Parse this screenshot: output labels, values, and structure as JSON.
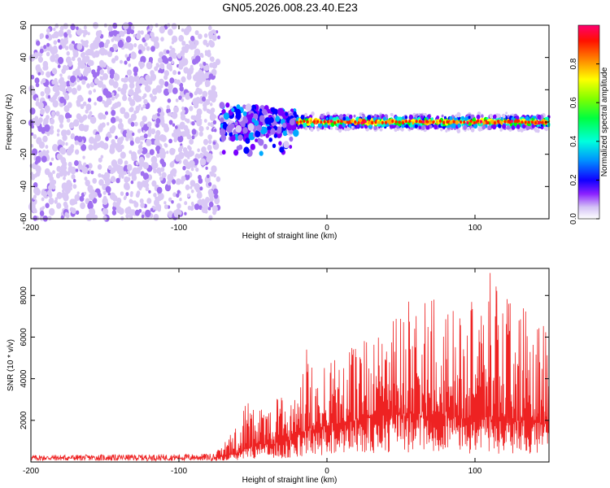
{
  "title": "GN05.2026.008.23.40.E23",
  "colors": {
    "snr_line": "#ee2222",
    "scatter_scale": [
      "#ffffff",
      "#d9c8f5",
      "#a070f0",
      "#7a00ff",
      "#0000ff",
      "#00aaff",
      "#00ffcc",
      "#00ff00",
      "#ffff00",
      "#ffaa00",
      "#ff2000",
      "#ff0066"
    ]
  },
  "chart_data": [
    {
      "id": "spectrogram",
      "type": "scatter",
      "xlabel": "Height of straight line (km)",
      "ylabel": "Frequency (Hz)",
      "xlim": [
        -200,
        150
      ],
      "ylim": [
        -60,
        60
      ],
      "xticks": [
        -200,
        -100,
        0,
        100
      ],
      "xtick_labels": [
        "-200",
        "-100",
        "0",
        "100"
      ],
      "yticks": [
        60,
        40,
        20,
        0,
        -20,
        -40,
        -60
      ],
      "ytick_labels": [
        "60",
        "40",
        "20",
        "0",
        "-20",
        "-40",
        "-60"
      ],
      "regions": [
        {
          "name": "noise",
          "x": [
            -200,
            -73
          ],
          "y": [
            -60,
            60
          ],
          "amplitude": [
            0.05,
            0.2
          ]
        },
        {
          "name": "transition",
          "x": [
            -72,
            -20
          ],
          "y": [
            -20,
            12
          ],
          "amplitude": [
            0.1,
            0.45
          ]
        },
        {
          "name": "signal_band",
          "x": [
            -20,
            150
          ],
          "y": [
            -4,
            4
          ],
          "center": 0,
          "amplitude": [
            0.2,
            0.95
          ]
        }
      ],
      "colorbar": {
        "label": "Normalized spectral amplitude",
        "range": [
          0,
          1
        ],
        "ticks": [
          0.0,
          0.2,
          0.4,
          0.6,
          0.8
        ],
        "tick_labels": [
          "0.0",
          "0.2",
          "0.4",
          "0.6",
          "0.8"
        ]
      }
    },
    {
      "id": "snr",
      "type": "line",
      "xlabel": "Height of straight line (km)",
      "ylabel": "SNR (10 * v/v)",
      "xlim": [
        -200,
        150
      ],
      "ylim": [
        0,
        9300
      ],
      "xticks": [
        -200,
        -100,
        0,
        100
      ],
      "xtick_labels": [
        "-200",
        "-100",
        "0",
        "100"
      ],
      "yticks": [
        2000,
        4000,
        6000,
        8000
      ],
      "ytick_labels": [
        "2000",
        "4000",
        "6000",
        "8000"
      ],
      "envelope": {
        "x": [
          -200,
          -100,
          -75,
          -60,
          -55,
          -45,
          -30,
          -20,
          -15,
          -5,
          0,
          10,
          20,
          30,
          40,
          50,
          60,
          70,
          80,
          90,
          100,
          110,
          120,
          130,
          140,
          150
        ],
        "baseline": [
          200,
          200,
          250,
          400,
          600,
          800,
          900,
          1200,
          1400,
          1600,
          1700,
          1900,
          2000,
          2100,
          2100,
          2200,
          2200,
          2200,
          2200,
          2000,
          2000,
          2000,
          1900,
          1900,
          1800,
          1800
        ],
        "peak": [
          400,
          450,
          500,
          1800,
          3000,
          2600,
          3200,
          3300,
          5600,
          4200,
          4900,
          5300,
          6000,
          6500,
          7000,
          8600,
          7500,
          8300,
          7800,
          8000,
          7900,
          9300,
          8000,
          7500,
          7900,
          6600
        ]
      }
    }
  ]
}
